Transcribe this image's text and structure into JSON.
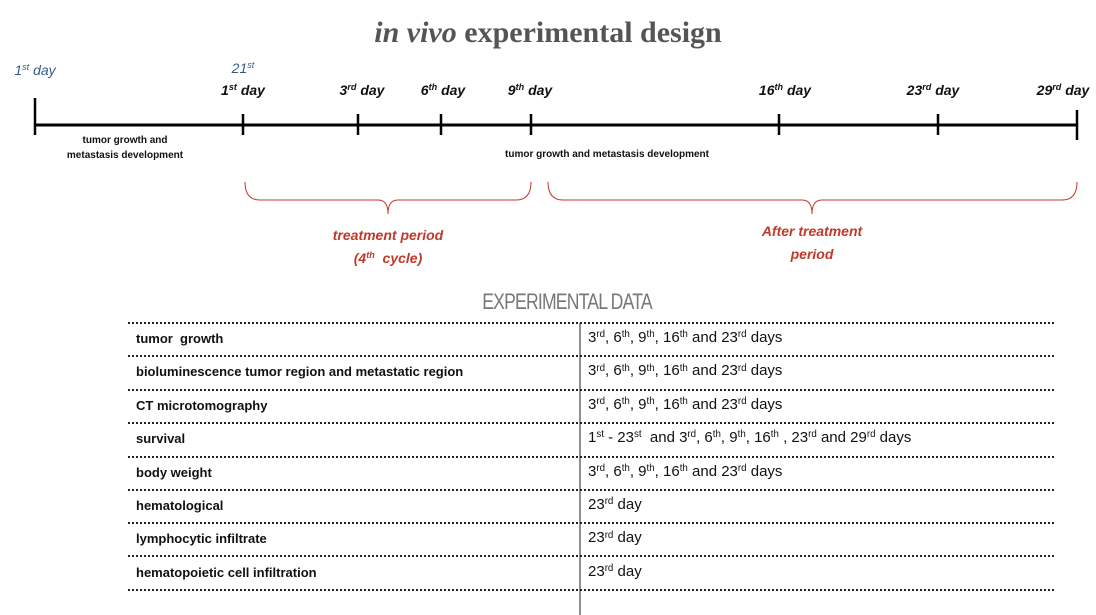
{
  "title": {
    "italic": "in vivo",
    "rest": " experimental design"
  },
  "timeline": {
    "start_label": [
      "1",
      "st",
      " day"
    ],
    "day21_label": [
      "21",
      "st"
    ],
    "days": [
      [
        "1",
        "st",
        " day"
      ],
      [
        "3",
        "rd",
        " day"
      ],
      [
        "6",
        "th",
        " day"
      ],
      [
        "9",
        "th",
        " day"
      ],
      [
        "16",
        "th",
        " day"
      ],
      [
        "23",
        "rd",
        " day"
      ],
      [
        "29",
        "rd",
        " day"
      ]
    ],
    "phase1": [
      "tumor growth and",
      "metastasis development"
    ],
    "phase2": "tumor growth and metastasis development",
    "treatment": [
      "treatment period",
      [
        "(4",
        "th",
        "  cycle)"
      ]
    ],
    "after": [
      "After treatment",
      "period"
    ]
  },
  "table": {
    "title": "EXPERIMENTAL DATA",
    "rows": [
      [
        "tumor  growth",
        [
          "3",
          "rd",
          ", 6",
          "th",
          ", 9",
          "th",
          ", 16",
          "th",
          " and 23",
          "rd",
          " days"
        ]
      ],
      [
        "bioluminescence tumor region and metastatic region",
        [
          "3",
          "rd",
          ", 6",
          "th",
          ", 9",
          "th",
          ", 16",
          "th",
          " and 23",
          "rd",
          " days"
        ]
      ],
      [
        "CT microtomography",
        [
          "3",
          "rd",
          ", 6",
          "th",
          ", 9",
          "th",
          ", 16",
          "th",
          " and 23",
          "rd",
          " days"
        ]
      ],
      [
        "survival",
        [
          "1",
          "st",
          " - 23",
          "st",
          "  and 3",
          "rd",
          ", 6",
          "th",
          ", 9",
          "th",
          ", 16",
          "th",
          " , 23",
          "rd",
          " and 29",
          "rd",
          " days"
        ]
      ],
      [
        "body weight",
        [
          "3",
          "rd",
          ", 6",
          "th",
          ", 9",
          "th",
          ", 16",
          "th",
          " and 23",
          "rd",
          " days"
        ]
      ],
      [
        "hematological",
        [
          "23",
          "rd",
          " day"
        ]
      ],
      [
        "lymphocytic infiltrate",
        [
          "23",
          "rd",
          " day"
        ]
      ],
      [
        "hematopoietic cell infiltration",
        [
          "23",
          "rd",
          " day"
        ]
      ]
    ]
  }
}
